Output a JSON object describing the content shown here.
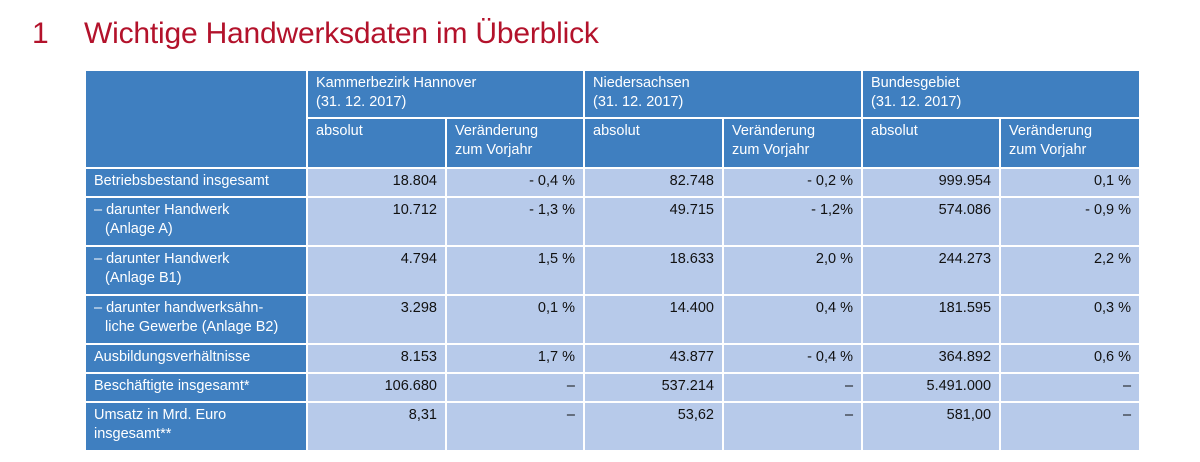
{
  "heading": {
    "number": "1",
    "title": "Wichtige Handwerksdaten im Überblick"
  },
  "table": {
    "regions": [
      {
        "name": "Kammerbezirk Hannover",
        "date": "(31. 12. 2017)"
      },
      {
        "name": "Niedersachsen",
        "date": "(31. 12. 2017)"
      },
      {
        "name": "Bundesgebiet",
        "date": "(31. 12. 2017)"
      }
    ],
    "subheaders": {
      "absolut": "absolut",
      "change_line1": "Veränderung",
      "change_line2": "zum Vorjahr"
    },
    "rows": [
      {
        "label": [
          "Betriebsbestand insgesamt"
        ],
        "values": [
          "18.804",
          "- 0,4 %",
          "82.748",
          "- 0,2 %",
          "999.954",
          "0,1 %"
        ]
      },
      {
        "label": [
          "– darunter Handwerk",
          "(Anlage A)"
        ],
        "values": [
          "10.712",
          "- 1,3 %",
          "49.715",
          "- 1,2%",
          "574.086",
          "- 0,9 %"
        ]
      },
      {
        "label": [
          "– darunter  Handwerk",
          "(Anlage B1)"
        ],
        "values": [
          "4.794",
          "1,5 %",
          "18.633",
          "2,0 %",
          "244.273",
          "2,2 %"
        ]
      },
      {
        "label": [
          "– darunter handwerksähn-",
          "liche Gewerbe (Anlage B2)"
        ],
        "values": [
          "3.298",
          "0,1 %",
          "14.400",
          "0,4 %",
          "181.595",
          "0,3 %"
        ]
      },
      {
        "label": [
          "Ausbildungsverhältnisse"
        ],
        "values": [
          "8.153",
          "1,7 %",
          "43.877",
          "- 0,4 %",
          "364.892",
          "0,6 %"
        ]
      },
      {
        "label": [
          "Beschäftigte insgesamt*"
        ],
        "values": [
          "106.680",
          "–",
          "537.214",
          "–",
          "5.491.000",
          "–"
        ]
      },
      {
        "label": [
          "Umsatz in Mrd. Euro",
          "insgesamt**"
        ],
        "values": [
          "8,31",
          "–",
          "53,62",
          "–",
          "581,00",
          "–"
        ]
      }
    ]
  },
  "colors": {
    "title_red": "#b3122b",
    "header_blue": "#3f7fc0",
    "cell_light_blue": "#b7caea",
    "gridline_white": "#ffffff"
  }
}
